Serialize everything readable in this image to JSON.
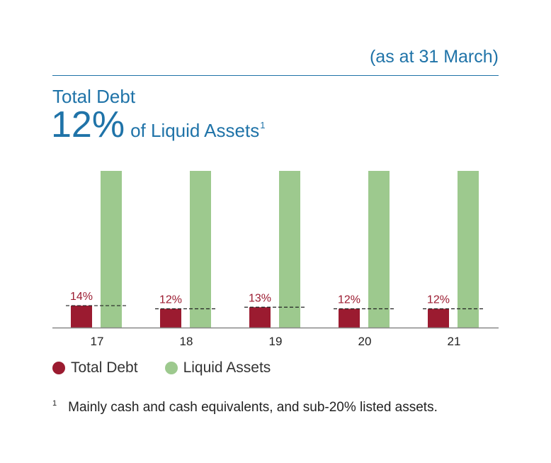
{
  "header": {
    "subtitle": "(as at 31 March)",
    "title_line1": "Total Debt",
    "title_pct": "12%",
    "title_rest": "of Liquid Assets",
    "title_footnote_mark": "1"
  },
  "colors": {
    "accent_blue": "#1f73a8",
    "total_debt": "#9b1b30",
    "liquid_assets": "#9dc98e"
  },
  "legend": {
    "items": [
      {
        "label": "Total Debt",
        "color": "#9b1b30"
      },
      {
        "label": "Liquid Assets",
        "color": "#9dc98e"
      }
    ]
  },
  "footnote": {
    "mark": "1",
    "text": "Mainly cash and cash equivalents, and sub-20% listed assets."
  },
  "chart_data": {
    "type": "bar",
    "categories": [
      "17",
      "18",
      "19",
      "20",
      "21"
    ],
    "series": [
      {
        "name": "Total Debt",
        "values": [
          14,
          12,
          13,
          12,
          12
        ],
        "color": "#9b1b30"
      },
      {
        "name": "Liquid Assets",
        "values": [
          100,
          100,
          100,
          100,
          100
        ],
        "color": "#9dc98e"
      }
    ],
    "data_labels": [
      "14%",
      "12%",
      "13%",
      "12%",
      "12%"
    ],
    "ylim": [
      0,
      100
    ],
    "grid": false,
    "legend_position": "bottom-left"
  }
}
